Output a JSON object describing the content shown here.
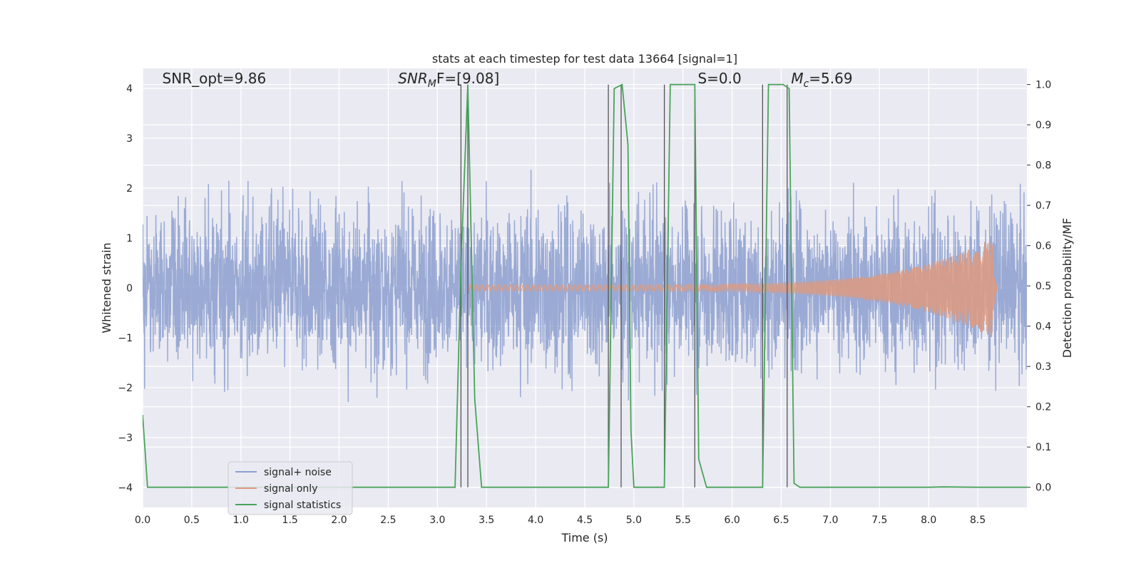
{
  "chart_data": {
    "type": "line",
    "title": "stats at each timestep for test data 13664 [signal=1]",
    "xlabel": "Time (s)",
    "ylabel": "Whitened strain",
    "y2label": "Detection probability/MF",
    "xlim": [
      0.0,
      9.0
    ],
    "ylim": [
      -4.4,
      4.4
    ],
    "y2lim": [
      -0.05,
      1.04
    ],
    "x_ticks": [
      "0.0",
      "0.5",
      "1.0",
      "1.5",
      "2.0",
      "2.5",
      "3.0",
      "3.5",
      "4.0",
      "4.5",
      "5.0",
      "5.5",
      "6.0",
      "6.5",
      "7.0",
      "7.5",
      "8.0",
      "8.5"
    ],
    "y_ticks": [
      "−4",
      "−3",
      "−2",
      "−1",
      "0",
      "1",
      "2",
      "3",
      "4"
    ],
    "y2_ticks": [
      "0.0",
      "0.1",
      "0.2",
      "0.3",
      "0.4",
      "0.5",
      "0.6",
      "0.7",
      "0.8",
      "0.9",
      "1.0"
    ],
    "grid": true,
    "legend_position": "lower-left",
    "annotations": [
      {
        "text": "SNR_opt=9.86",
        "x": 0.2,
        "y": 4.1
      },
      {
        "main": "SNR",
        "sub": "M",
        "rest": "F=[9.08]",
        "x": 2.6,
        "y": 4.1
      },
      {
        "text": "S=0.0",
        "x": 5.65,
        "y": 4.1
      },
      {
        "main": "M",
        "sub": "c",
        "rest": "=5.69",
        "x": 6.6,
        "y": 4.1
      }
    ],
    "series": [
      {
        "name": "signal+ noise",
        "color": "#8c9fcf",
        "axis": "left",
        "description": "whitened noise, peaks mostly within ±2.5",
        "amplitude": 2.4,
        "duration": 9.0
      },
      {
        "name": "signal only",
        "color": "#dd9a7f",
        "axis": "left",
        "description": "chirp growing from 3.3 s to merger at 8.65 s",
        "start": 3.3,
        "merger": 8.65,
        "peak_amplitude": 1.0
      },
      {
        "name": "signal statistics",
        "color": "#4aa35a",
        "axis": "right",
        "x": [
          0.0,
          0.05,
          0.12,
          1.0,
          2.0,
          3.0,
          3.18,
          3.24,
          3.31,
          3.38,
          3.45,
          4.0,
          4.5,
          4.74,
          4.8,
          4.88,
          4.94,
          4.97,
          5.0,
          5.31,
          5.37,
          5.62,
          5.66,
          5.74,
          6.0,
          6.31,
          6.37,
          6.52,
          6.58,
          6.63,
          6.69,
          7.0,
          8.0,
          8.15,
          8.5,
          9.0
        ],
        "y": [
          0.18,
          0.0,
          0.0,
          0.0,
          0.0,
          0.0,
          0.0,
          0.55,
          1.0,
          0.22,
          0.0,
          0.0,
          0.0,
          0.0,
          0.99,
          1.0,
          0.85,
          0.14,
          0.0,
          0.0,
          1.0,
          1.0,
          0.07,
          0.0,
          0.0,
          0.0,
          1.0,
          1.0,
          0.99,
          0.01,
          0.0,
          0.0,
          0.0,
          0.001,
          0.0,
          0.0
        ]
      }
    ],
    "vertical_lines": {
      "color": "#555555",
      "x": [
        3.24,
        3.31,
        4.74,
        4.87,
        5.31,
        5.62,
        6.31,
        6.56
      ]
    }
  }
}
